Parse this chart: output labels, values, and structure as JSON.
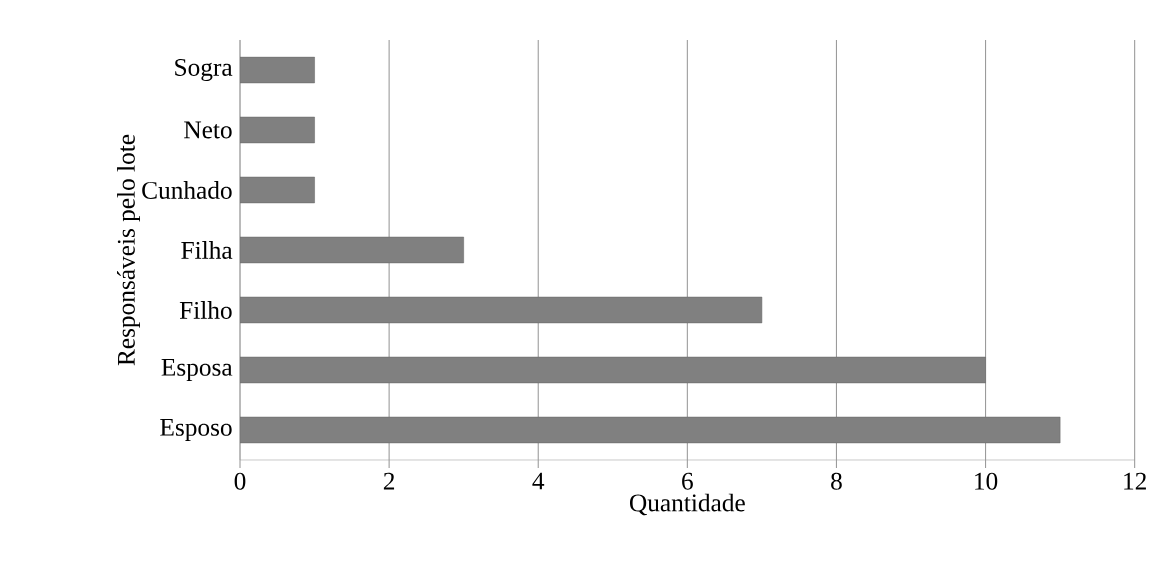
{
  "chart_data": {
    "type": "bar",
    "orientation": "horizontal",
    "categories": [
      "Sogra",
      "Neto",
      "Cunhado",
      "Filha",
      "Filho",
      "Esposa",
      "Esposo"
    ],
    "values": [
      1,
      1,
      1,
      3,
      7,
      10,
      11
    ],
    "color": "#808080",
    "xlim": [
      0,
      12
    ],
    "xticks": [
      0,
      2,
      4,
      6,
      8,
      10,
      12
    ],
    "grid": "x",
    "xlabel": "Quantidade",
    "ylabel": "Responsáveis pelo lote"
  }
}
